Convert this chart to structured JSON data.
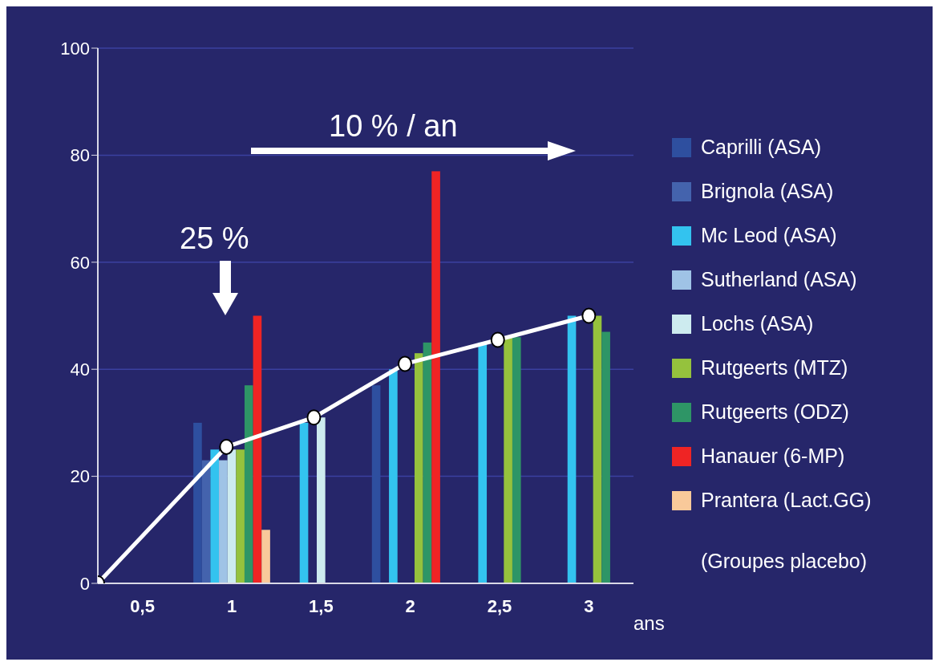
{
  "chart_data": {
    "type": "bar",
    "x": [
      1,
      1.5,
      2,
      2.5,
      3
    ],
    "xlim": [
      0.25,
      3.25
    ],
    "xticks": [
      {
        "value": 0.5,
        "label": "0,5"
      },
      {
        "value": 1,
        "label": "1"
      },
      {
        "value": 1.5,
        "label": "1,5"
      },
      {
        "value": 2,
        "label": "2"
      },
      {
        "value": 2.5,
        "label": "2,5"
      },
      {
        "value": 3,
        "label": "3"
      }
    ],
    "xlabel": "ans",
    "ylim": [
      0,
      100
    ],
    "yticks": [
      0,
      20,
      40,
      60,
      80,
      100
    ],
    "grid": "y",
    "legend": "right",
    "legend_title": "(Groupes placebo)",
    "marker": "circle",
    "annotations": [
      "10 % / an",
      "25 %"
    ],
    "series": [
      {
        "name": "Caprilli (ASA)",
        "color": "#2e4f9f",
        "values": [
          30,
          null,
          37,
          null,
          null
        ]
      },
      {
        "name": "Brignola (ASA)",
        "color": "#4463ad",
        "values": [
          23,
          null,
          null,
          null,
          null
        ]
      },
      {
        "name": "Mc Leod (ASA)",
        "color": "#33c3ef",
        "values": [
          25,
          30,
          40,
          45,
          50
        ]
      },
      {
        "name": "Sutherland (ASA)",
        "color": "#9fc3e6",
        "values": [
          23,
          null,
          null,
          null,
          null
        ]
      },
      {
        "name": "Lochs (ASA)",
        "color": "#cdebef",
        "values": [
          25,
          31,
          null,
          null,
          null
        ]
      },
      {
        "name": "Rutgeerts (MTZ)",
        "color": "#95c23d",
        "values": [
          25,
          null,
          43,
          46,
          50
        ]
      },
      {
        "name": "Rutgeerts (ODZ)",
        "color": "#2e9566",
        "values": [
          37,
          null,
          45,
          46,
          47
        ]
      },
      {
        "name": "Hanauer (6-MP)",
        "color": "#ef2424",
        "values": [
          50,
          null,
          77,
          null,
          null
        ]
      },
      {
        "name": "Prantera (Lact.GG)",
        "color": "#f9c99a",
        "values": [
          10,
          null,
          null,
          null,
          null
        ]
      },
      {
        "type": "line",
        "color": "#ffffff",
        "x": [
          0.25,
          0.97,
          1.46,
          1.97,
          2.49,
          3
        ],
        "values": [
          0,
          25.5,
          31,
          41,
          45.5,
          50
        ]
      }
    ]
  }
}
